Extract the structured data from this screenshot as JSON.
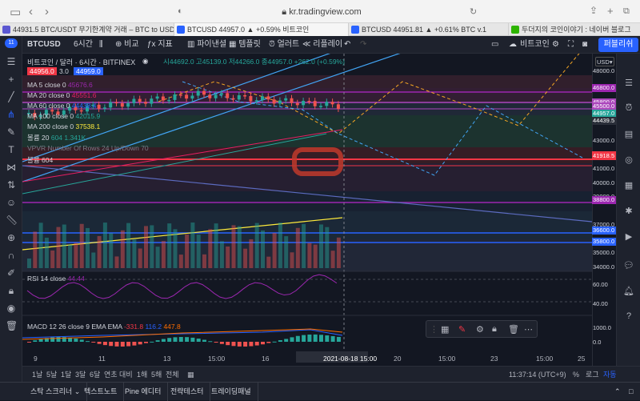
{
  "browser": {
    "url": "kr.tradingview.com",
    "notif_badge": "11",
    "tabs": [
      {
        "label": "44931.5 BTC/USDT 무기한계약 거래 – BTC to USDT | Bitget",
        "color": "#5b57d1"
      },
      {
        "label": "BTCUSD 44957.0 ▲ +0.59% 비트코인",
        "color": "#2962ff"
      },
      {
        "label": "BTCUSD 44951.81 ▲ +0.61% BTC v.1",
        "color": "#2962ff"
      },
      {
        "label": "두더지의 코인이야기 : 네이버 블로그",
        "color": "#2db400"
      }
    ]
  },
  "toolbar": {
    "symbol": "BTCUSD",
    "interval": "6시간",
    "compare": "비교",
    "indicators": "지표",
    "financials": "파이낸셜",
    "templates": "템플릿",
    "alert": "얼러트",
    "replay": "리플레이",
    "layout_name": "비트코인",
    "publish": "퍼블리쉬"
  },
  "legend": {
    "title": "비트코인 / 달러 · 6시간 · BITFINEX",
    "ohlc": "시44692.0 고45139.0 저44266.0 종44957.0 +262.0 (+0.59%)",
    "bid": "44956.0",
    "spread": "3.0",
    "ask": "44959.0",
    "ma": [
      {
        "label": "MA 5 close 0",
        "value": "45676.6",
        "color": "#9c27b0"
      },
      {
        "label": "MA 20 close 0",
        "value": "45551.6",
        "color": "#e91e63"
      },
      {
        "label": "MA 60 close 0",
        "value": "44438.4",
        "color": "#2962ff"
      },
      {
        "label": "MA 100 close 0",
        "value": "42015.9",
        "color": "#26a69a"
      },
      {
        "label": "MA 200 close 0",
        "value": "37538.1",
        "color": "#ffeb3b"
      }
    ],
    "volume_label": "볼륨 20",
    "volume_values": "604  1.341K",
    "vpvr": "VPVR Number Of Rows 24 Up/Down 70",
    "volume2": "볼륨  604"
  },
  "price_axis": {
    "currency": "USD",
    "labels": [
      "48000.0",
      "46800.0",
      "45800.0",
      "45500.0",
      "44957.0",
      "44439.5",
      "43000.0",
      "42000.0",
      "41918.5",
      "41000.0",
      "40000.0",
      "39000.0",
      "38800.0",
      "37000.0",
      "36600.0",
      "35800.0",
      "35000.0",
      "34000.0"
    ],
    "rsi_labels": [
      "60.00",
      "40.00"
    ],
    "macd_labels": [
      "1000.0",
      "0.0"
    ]
  },
  "rsi": {
    "label": "RSI 14 close",
    "value": "44.44"
  },
  "macd": {
    "label": "MACD 12 26 close 9 EMA EMA",
    "v1": "-331.8",
    "v2": "116.2",
    "v3": "447.8"
  },
  "time_axis": {
    "labels": [
      "9",
      "11",
      "13",
      "15:00",
      "16",
      "2021-08-18",
      "15:00",
      "20",
      "15:00",
      "23",
      "15:00",
      "25"
    ]
  },
  "bottom": {
    "ranges": [
      "1날",
      "5날",
      "1달",
      "3달",
      "6달",
      "연초 대비",
      "1해",
      "5해",
      "전체"
    ],
    "clock": "11:37:14 (UTC+9)",
    "percent": "%",
    "log": "로그",
    "auto": "자동"
  },
  "footer": {
    "tabs": [
      "스탁 스크리너",
      "텍스트노트",
      "Pine 에디터",
      "전략테스터",
      "트레이딩패널"
    ]
  }
}
